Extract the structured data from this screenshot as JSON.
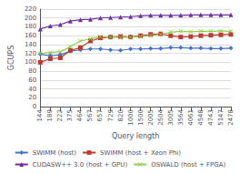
{
  "chart_data": {
    "type": "line",
    "xlabel": "Query length",
    "ylabel": "GCUPS",
    "categories": [
      "144",
      "189",
      "222",
      "375",
      "464",
      "567",
      "657",
      "729",
      "820",
      "1000",
      "1500",
      "2005",
      "2504",
      "3005",
      "3564",
      "4061",
      "4548",
      "4743",
      "5147",
      "2478"
    ],
    "series": [
      {
        "name": "SWIMM (host)",
        "color": "#4472c4",
        "marker": "diamond",
        "values": [
          118,
          115,
          117,
          125,
          128,
          130,
          130,
          128,
          127,
          130,
          130,
          131,
          131,
          133,
          133,
          132,
          132,
          131,
          131,
          132
        ]
      },
      {
        "name": "SWIMM (host + Xeon Phi)",
        "color": "#c0392b",
        "marker": "square",
        "values": [
          100,
          108,
          110,
          127,
          133,
          148,
          155,
          157,
          158,
          157,
          160,
          163,
          164,
          160,
          157,
          158,
          160,
          161,
          162,
          163
        ]
      },
      {
        "name": "CUDASW++ 3.0 (host + GPU)",
        "color": "#7030a0",
        "marker": "triangle",
        "values": [
          175,
          182,
          185,
          193,
          196,
          197,
          200,
          201,
          202,
          203,
          205,
          206,
          206,
          206,
          206,
          207,
          207,
          207,
          207,
          207
        ]
      },
      {
        "name": "OSWALD (host + FPGA)",
        "color": "#92d050",
        "marker": "x",
        "values": [
          120,
          122,
          124,
          135,
          148,
          153,
          158,
          157,
          156,
          157,
          158,
          160,
          163,
          168,
          170,
          169,
          170,
          170,
          171,
          170
        ]
      }
    ],
    "ylim": [
      0,
      220
    ],
    "yticks": [
      0,
      20,
      40,
      60,
      80,
      100,
      120,
      140,
      160,
      180,
      200,
      220
    ],
    "grid": true,
    "legend": "bottom"
  }
}
